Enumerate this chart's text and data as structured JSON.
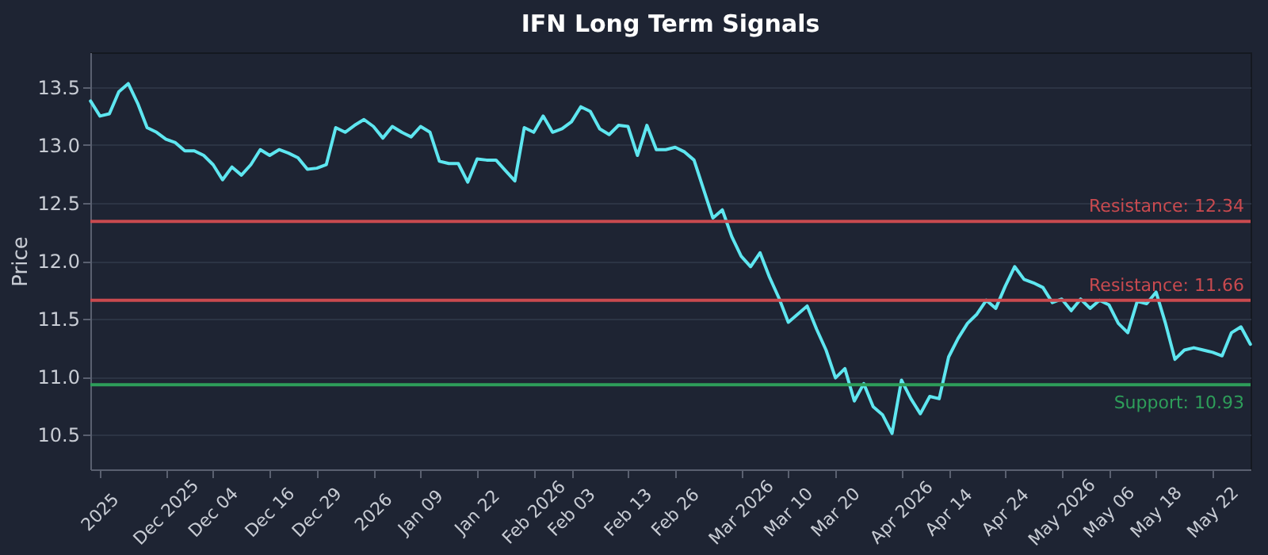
{
  "chart_data": {
    "type": "line",
    "title": "IFN Long Term Signals",
    "ylabel": "Price",
    "categories": [
      null,
      "2025",
      null,
      null,
      null,
      null,
      null,
      null,
      "Dec 2025",
      null,
      null,
      null,
      null,
      "Dec 04",
      null,
      null,
      null,
      null,
      null,
      "Dec 16",
      null,
      null,
      null,
      null,
      "Dec 29",
      null,
      null,
      null,
      null,
      null,
      "2026",
      null,
      null,
      null,
      null,
      "Jan 09",
      null,
      null,
      null,
      null,
      null,
      "Jan 22",
      null,
      null,
      null,
      null,
      null,
      "Feb 2026",
      null,
      null,
      null,
      "Feb 03",
      null,
      null,
      null,
      null,
      null,
      "Feb 13",
      null,
      null,
      null,
      null,
      "Feb 26",
      null,
      null,
      null,
      null,
      null,
      null,
      "Mar 2026",
      null,
      null,
      null,
      null,
      "Mar 10",
      null,
      null,
      null,
      null,
      "Mar 20",
      null,
      null,
      null,
      null,
      null,
      null,
      "Apr 2026",
      null,
      null,
      null,
      null,
      "Apr 14",
      null,
      null,
      null,
      null,
      null,
      "Apr 24",
      null,
      null,
      null,
      null,
      null,
      "May 2026",
      null,
      null,
      null,
      null,
      "May 06",
      null,
      null,
      null,
      null,
      "May 18",
      null,
      null,
      null,
      null,
      null,
      "May 22",
      null,
      null,
      null,
      null
    ],
    "series": [
      {
        "color": "#5ee6f0",
        "values": [
          13.38,
          13.25,
          13.27,
          13.46,
          13.53,
          13.36,
          13.15,
          13.11,
          13.05,
          13.02,
          12.95,
          12.95,
          12.91,
          12.83,
          12.7,
          12.81,
          12.74,
          12.83,
          12.96,
          12.91,
          12.96,
          12.93,
          12.89,
          12.79,
          12.8,
          12.83,
          13.15,
          13.11,
          13.17,
          13.22,
          13.16,
          13.06,
          13.16,
          13.11,
          13.07,
          13.16,
          13.11,
          12.86,
          12.84,
          12.84,
          12.68,
          12.88,
          12.87,
          12.87,
          12.78,
          12.69,
          13.15,
          13.11,
          13.25,
          13.11,
          13.14,
          13.2,
          13.33,
          13.29,
          13.14,
          13.09,
          13.17,
          13.16,
          12.91,
          13.17,
          12.96,
          12.96,
          12.98,
          12.94,
          12.87,
          12.62,
          12.37,
          12.44,
          12.21,
          12.04,
          11.95,
          12.07,
          11.86,
          11.68,
          11.47,
          11.54,
          11.61,
          11.41,
          11.23,
          10.99,
          11.07,
          10.79,
          10.94,
          10.74,
          10.67,
          10.51,
          10.97,
          10.81,
          10.68,
          10.83,
          10.81,
          11.17,
          11.33,
          11.46,
          11.54,
          11.66,
          11.59,
          11.78,
          11.95,
          11.84,
          11.81,
          11.77,
          11.64,
          11.67,
          11.57,
          11.67,
          11.59,
          11.66,
          11.62,
          11.46,
          11.38,
          11.65,
          11.63,
          11.73,
          11.46,
          11.15,
          11.23,
          11.25,
          11.23,
          11.21,
          11.18,
          11.38,
          11.43,
          11.28
        ]
      }
    ],
    "ylim": [
      10.2,
      13.8
    ],
    "yticks": [
      10.5,
      {
        "value": 11,
        "label": "11.0"
      },
      11.5,
      {
        "value": 12,
        "label": "12.0"
      },
      12.5,
      {
        "value": 13,
        "label": "13.0"
      },
      13.5
    ],
    "grid": "y",
    "ref_lines": [
      {
        "axis": "y",
        "value": 12.34,
        "label": "Resistance: 12.34",
        "color": "#c94a4f"
      },
      {
        "axis": "y",
        "value": 11.66,
        "label": "Resistance: 11.66",
        "color": "#c94a4f"
      },
      {
        "axis": "y",
        "value": 10.93,
        "label": "Support: 10.93",
        "color": "#2e9e5a"
      }
    ]
  }
}
